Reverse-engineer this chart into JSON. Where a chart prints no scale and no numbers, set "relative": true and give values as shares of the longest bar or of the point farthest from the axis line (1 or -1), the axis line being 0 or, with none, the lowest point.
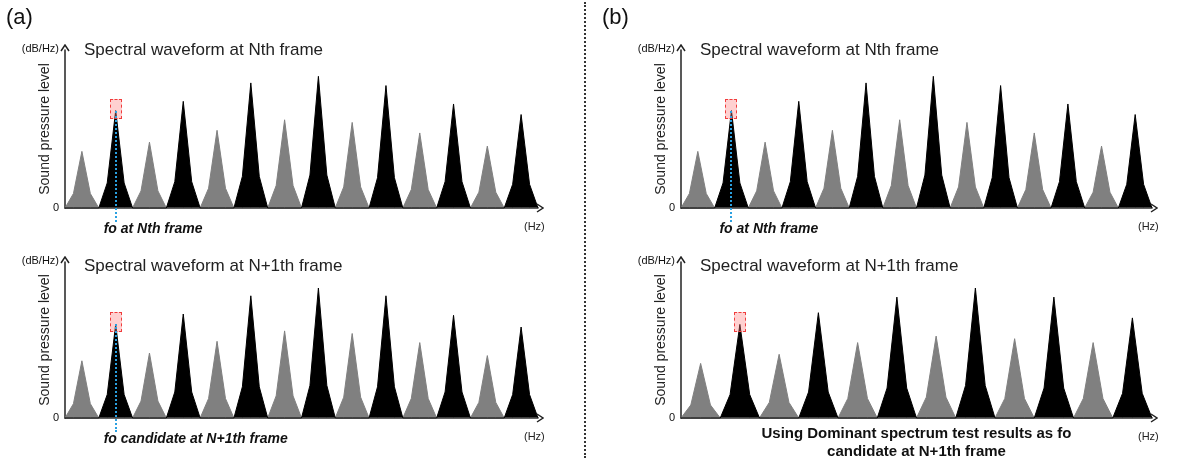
{
  "chart_data": [
    {
      "type": "area",
      "relative": true,
      "title": "Spectral waveform at Nth frame",
      "ylabel": "Sound pressure level",
      "xlabel": "(Hz)",
      "annotations": [
        "(a)",
        "(dB/Hz)",
        "0",
        {
          "text": "fo at Nth frame"
        }
      ],
      "categories": [
        null,
        null,
        null,
        null,
        null,
        null,
        null,
        null,
        null,
        null,
        null,
        null,
        null,
        null,
        null,
        null,
        null,
        null,
        null,
        null,
        null,
        null,
        null,
        null,
        null,
        null,
        null,
        null,
        null,
        null,
        null,
        null,
        null,
        null,
        null,
        null,
        null,
        null,
        null,
        null,
        null,
        null,
        null,
        null,
        null,
        null,
        null,
        null,
        null,
        null,
        null,
        null,
        null,
        null,
        null,
        null,
        null
      ],
      "series": [
        {
          "color": "#808080",
          "values": [
            0,
            0.11,
            0.43,
            0.11,
            0,
            0,
            0,
            0,
            0,
            0.13,
            0.5,
            0.13,
            0,
            0,
            0,
            0,
            0,
            0.15,
            0.59,
            0.15,
            0,
            0,
            0,
            0,
            0,
            0.17,
            0.67,
            0.17,
            0,
            0,
            0,
            0,
            0,
            0.16,
            0.65,
            0.16,
            0,
            0,
            0,
            0,
            0,
            0.14,
            0.57,
            0.14,
            0,
            0,
            0,
            0,
            0,
            0.12,
            0.47,
            0.12,
            0,
            0,
            0,
            0,
            0
          ]
        },
        {
          "color": "#000000",
          "values": [
            0,
            0,
            0,
            0,
            0,
            0.19,
            0.74,
            0.19,
            0,
            0,
            0,
            0,
            0,
            0.2,
            0.81,
            0.2,
            0,
            0,
            0,
            0,
            0,
            0.24,
            0.95,
            0.24,
            0,
            0,
            0,
            0,
            0,
            0.25,
            1,
            0.25,
            0,
            0,
            0,
            0,
            0,
            0.23,
            0.93,
            0.23,
            0,
            0,
            0,
            0,
            0,
            0.2,
            0.79,
            0.2,
            0,
            0,
            0,
            0,
            0,
            0.18,
            0.71,
            0.18,
            0
          ]
        }
      ]
    },
    {
      "type": "area",
      "relative": true,
      "title": "Spectral waveform at N+1th frame",
      "ylabel": "Sound pressure level",
      "xlabel": "(Hz)",
      "annotations": [
        "(dB/Hz)",
        "0",
        {
          "text": "fo candidate at N+1th frame"
        }
      ],
      "categories": [
        null,
        null,
        null,
        null,
        null,
        null,
        null,
        null,
        null,
        null,
        null,
        null,
        null,
        null,
        null,
        null,
        null,
        null,
        null,
        null,
        null,
        null,
        null,
        null,
        null,
        null,
        null,
        null,
        null,
        null,
        null,
        null,
        null,
        null,
        null,
        null,
        null,
        null,
        null,
        null,
        null,
        null,
        null,
        null,
        null,
        null,
        null,
        null,
        null,
        null,
        null,
        null,
        null,
        null,
        null,
        null,
        null
      ],
      "series": [
        {
          "color": "#808080",
          "values": [
            0,
            0.11,
            0.44,
            0.11,
            0,
            0,
            0,
            0,
            0,
            0.13,
            0.5,
            0.13,
            0,
            0,
            0,
            0,
            0,
            0.15,
            0.59,
            0.15,
            0,
            0,
            0,
            0,
            0,
            0.17,
            0.67,
            0.17,
            0,
            0,
            0,
            0,
            0,
            0.16,
            0.65,
            0.16,
            0,
            0,
            0,
            0,
            0,
            0.15,
            0.58,
            0.15,
            0,
            0,
            0,
            0,
            0,
            0.12,
            0.48,
            0.12,
            0,
            0,
            0,
            0,
            0
          ]
        },
        {
          "color": "#000000",
          "values": [
            0,
            0,
            0,
            0,
            0,
            0.18,
            0.72,
            0.18,
            0,
            0,
            0,
            0,
            0,
            0.2,
            0.8,
            0.2,
            0,
            0,
            0,
            0,
            0,
            0.24,
            0.94,
            0.24,
            0,
            0,
            0,
            0,
            0,
            0.25,
            1,
            0.25,
            0,
            0,
            0,
            0,
            0,
            0.24,
            0.94,
            0.24,
            0,
            0,
            0,
            0,
            0,
            0.2,
            0.79,
            0.2,
            0,
            0,
            0,
            0,
            0,
            0.18,
            0.7,
            0.18,
            0
          ]
        }
      ]
    },
    {
      "type": "area",
      "relative": true,
      "title": "Spectral waveform at Nth frame",
      "ylabel": "Sound pressure level",
      "xlabel": "(Hz)",
      "annotations": [
        "(b)",
        "(dB/Hz)",
        "0",
        {
          "text": "fo at Nth frame"
        }
      ],
      "categories": [
        null,
        null,
        null,
        null,
        null,
        null,
        null,
        null,
        null,
        null,
        null,
        null,
        null,
        null,
        null,
        null,
        null,
        null,
        null,
        null,
        null,
        null,
        null,
        null,
        null,
        null,
        null,
        null,
        null,
        null,
        null,
        null,
        null,
        null,
        null,
        null,
        null,
        null,
        null,
        null,
        null,
        null,
        null,
        null,
        null,
        null,
        null,
        null,
        null,
        null,
        null,
        null,
        null,
        null,
        null,
        null,
        null
      ],
      "series": [
        {
          "color": "#808080",
          "values": [
            0,
            0.11,
            0.43,
            0.11,
            0,
            0,
            0,
            0,
            0,
            0.13,
            0.5,
            0.13,
            0,
            0,
            0,
            0,
            0,
            0.15,
            0.59,
            0.15,
            0,
            0,
            0,
            0,
            0,
            0.17,
            0.67,
            0.17,
            0,
            0,
            0,
            0,
            0,
            0.16,
            0.65,
            0.16,
            0,
            0,
            0,
            0,
            0,
            0.14,
            0.57,
            0.14,
            0,
            0,
            0,
            0,
            0,
            0.12,
            0.47,
            0.12,
            0,
            0,
            0,
            0,
            0
          ]
        },
        {
          "color": "#000000",
          "values": [
            0,
            0,
            0,
            0,
            0,
            0.19,
            0.74,
            0.19,
            0,
            0,
            0,
            0,
            0,
            0.2,
            0.81,
            0.2,
            0,
            0,
            0,
            0,
            0,
            0.24,
            0.95,
            0.24,
            0,
            0,
            0,
            0,
            0,
            0.25,
            1,
            0.25,
            0,
            0,
            0,
            0,
            0,
            0.23,
            0.93,
            0.23,
            0,
            0,
            0,
            0,
            0,
            0.2,
            0.79,
            0.2,
            0,
            0,
            0,
            0,
            0,
            0.18,
            0.71,
            0.18,
            0
          ]
        }
      ]
    },
    {
      "type": "area",
      "relative": true,
      "title": "Spectral waveform at N+1th frame",
      "ylabel": "Sound pressure level",
      "xlabel": "(Hz)",
      "annotations": [
        "(dB/Hz)",
        "0",
        "Using Dominant spectrum test results as fo candidate at N+1th frame"
      ],
      "categories": [
        null,
        null,
        null,
        null,
        null,
        null,
        null,
        null,
        null,
        null,
        null,
        null,
        null,
        null,
        null,
        null,
        null,
        null,
        null,
        null,
        null,
        null,
        null,
        null,
        null,
        null,
        null,
        null,
        null,
        null,
        null,
        null,
        null,
        null,
        null,
        null,
        null,
        null,
        null,
        null,
        null,
        null,
        null,
        null,
        null,
        null,
        null,
        null,
        null
      ],
      "series": [
        {
          "color": "#808080",
          "values": [
            0,
            0.1,
            0.42,
            0.1,
            0,
            0,
            0,
            0,
            0,
            0.12,
            0.49,
            0.12,
            0,
            0,
            0,
            0,
            0,
            0.15,
            0.58,
            0.15,
            0,
            0,
            0,
            0,
            0,
            0.16,
            0.63,
            0.16,
            0,
            0,
            0,
            0,
            0,
            0.15,
            0.61,
            0.15,
            0,
            0,
            0,
            0,
            0,
            0.15,
            0.58,
            0.15,
            0,
            0,
            0,
            0,
            0
          ]
        },
        {
          "color": "#000000",
          "values": [
            0,
            0,
            0,
            0,
            0,
            0.18,
            0.72,
            0.18,
            0,
            0,
            0,
            0,
            0,
            0.2,
            0.81,
            0.2,
            0,
            0,
            0,
            0,
            0,
            0.23,
            0.93,
            0.23,
            0,
            0,
            0,
            0,
            0,
            0.25,
            1,
            0.25,
            0,
            0,
            0,
            0,
            0,
            0.23,
            0.93,
            0.23,
            0,
            0,
            0,
            0,
            0,
            0.19,
            0.77,
            0.19,
            0
          ]
        }
      ]
    }
  ]
}
